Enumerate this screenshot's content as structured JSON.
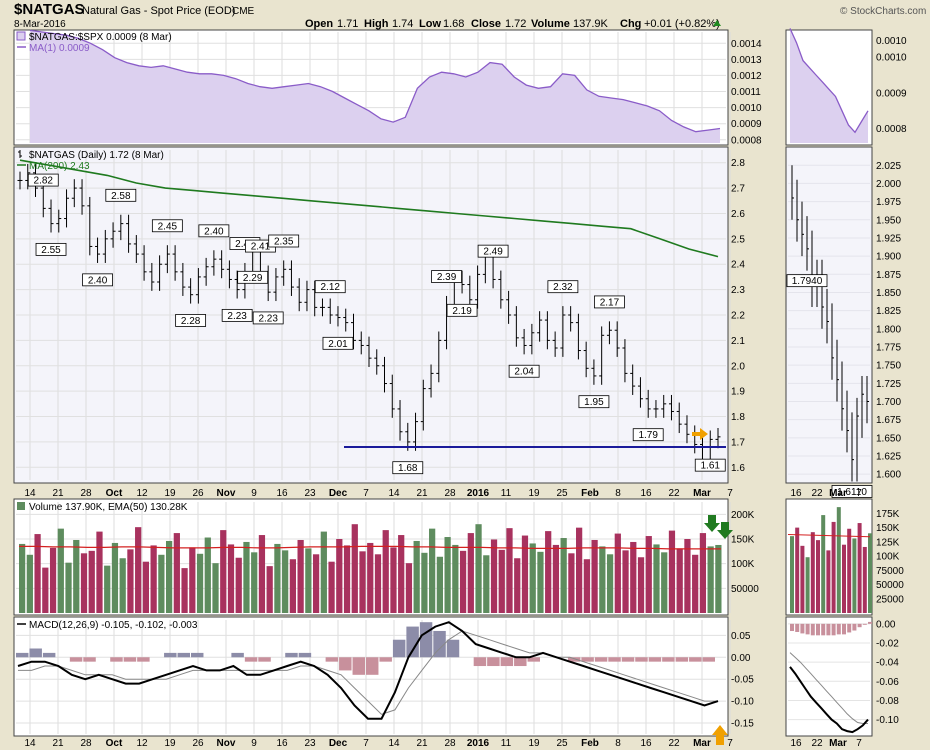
{
  "header": {
    "symbol": "$NATGAS",
    "name": "Natural Gas - Spot Price (EOD)",
    "exchange": "CME",
    "date": "8-Mar-2016",
    "copyright": "© StockCharts.com",
    "quote": {
      "open_label": "Open",
      "open": "1.71",
      "high_label": "High",
      "high": "1.74",
      "low_label": "Low",
      "low": "1.68",
      "close_label": "Close",
      "close": "1.72",
      "volume_label": "Volume",
      "volume": "137.9K",
      "chg_label": "Chg",
      "chg": "+0.01 (+0.82%)"
    }
  },
  "colors": {
    "ratio_line": "#8a5cc8",
    "ratio_fill": "#dcd0ef",
    "ma200": "#1f7a1f",
    "support": "#1a1a9a",
    "vol_up": "#5e8c5e",
    "vol_down": "#a8325e",
    "ema": "#d42020",
    "macd": "#000000",
    "signal": "#888888",
    "hist_pos": "#8c8ca8",
    "hist_neg": "#c8909c",
    "arrow_orange": "#f0a000",
    "arrow_green": "#207a20"
  },
  "x_axis": {
    "ticks": [
      "14",
      "21",
      "28",
      "Oct",
      "12",
      "19",
      "26",
      "Nov",
      "9",
      "16",
      "23",
      "Dec",
      "7",
      "14",
      "21",
      "28",
      "2016",
      "11",
      "19",
      "25",
      "Feb",
      "8",
      "16",
      "22",
      "Mar",
      "7"
    ],
    "right_ticks": [
      "16",
      "22",
      "Mar",
      "7"
    ]
  },
  "chart_data": [
    {
      "type": "area",
      "panel": "ratio",
      "label": "$NATGAS:$SPX 0.0009 (8 Mar)",
      "ma_label": "MA(1) 0.0009",
      "yticks": [
        "0.0014",
        "0.0013",
        "0.0012",
        "0.0011",
        "0.0010",
        "0.0009",
        "0.0008"
      ],
      "ylim": [
        0.00078,
        0.00147
      ],
      "series": [
        {
          "name": "$NATGAS:$SPX",
          "values": [
            0.00148,
            0.00147,
            0.00146,
            0.00145,
            0.00143,
            0.0014,
            0.00136,
            0.00131,
            0.00128,
            0.00126,
            0.00125,
            0.00126,
            0.00124,
            0.00122,
            0.00121,
            0.00121,
            0.0012,
            0.00118,
            0.00115,
            0.00113,
            0.00112,
            0.00113,
            0.00114,
            0.00115,
            0.00113,
            0.0011,
            0.00106,
            0.00102,
            0.00098,
            0.00093,
            0.00091,
            0.00094,
            0.00112,
            0.00119,
            0.00122,
            0.00121,
            0.00119,
            0.00122,
            0.00128,
            0.00127,
            0.00119,
            0.00114,
            0.00112,
            0.00113,
            0.00121,
            0.0012,
            0.00111,
            0.00107,
            0.00106,
            0.00105,
            0.00103,
            0.00101,
            0.00098,
            0.00092,
            0.00088,
            0.00085,
            0.00086,
            0.00087
          ]
        }
      ]
    },
    {
      "type": "ohlc",
      "panel": "price",
      "label": "$NATGAS (Daily) 1.72 (8 Mar)",
      "ma_label": "MA(200) 2.43",
      "yticks": [
        "2.8",
        "2.7",
        "2.6",
        "2.5",
        "2.4",
        "2.3",
        "2.2",
        "2.1",
        "2.0",
        "1.9",
        "1.8",
        "1.7",
        "1.6"
      ],
      "ylim": [
        1.55,
        2.85
      ],
      "support_level": 1.68,
      "ma200": [
        2.81,
        2.79,
        2.77,
        2.75,
        2.72,
        2.7,
        2.69,
        2.68,
        2.67,
        2.66,
        2.65,
        2.64,
        2.63,
        2.62,
        2.61,
        2.6,
        2.59,
        2.58,
        2.57,
        2.56,
        2.55,
        2.54,
        2.5,
        2.46,
        2.43
      ],
      "close": [
        2.73,
        2.76,
        2.7,
        2.62,
        2.56,
        2.58,
        2.66,
        2.7,
        2.63,
        2.47,
        2.44,
        2.5,
        2.53,
        2.56,
        2.48,
        2.44,
        2.37,
        2.33,
        2.4,
        2.44,
        2.37,
        2.31,
        2.28,
        2.35,
        2.39,
        2.42,
        2.38,
        2.34,
        2.3,
        2.37,
        2.45,
        2.36,
        2.29,
        2.35,
        2.38,
        2.31,
        2.25,
        2.3,
        2.23,
        2.23,
        2.2,
        2.19,
        2.17,
        2.1,
        2.08,
        2.03,
        2.0,
        1.93,
        1.83,
        1.74,
        1.7,
        1.78,
        1.91,
        1.97,
        2.1,
        2.24,
        2.34,
        2.32,
        2.26,
        2.36,
        2.43,
        2.34,
        2.26,
        2.2,
        2.11,
        2.08,
        2.13,
        2.18,
        2.1,
        2.07,
        2.2,
        2.17,
        2.06,
        1.99,
        1.96,
        2.12,
        2.14,
        2.07,
        1.97,
        1.92,
        1.87,
        1.83,
        1.83,
        1.85,
        1.82,
        1.77,
        1.73,
        1.69,
        1.63,
        1.71,
        1.72
      ],
      "labels": [
        {
          "text": "2.82",
          "i": 3
        },
        {
          "text": "2.55",
          "i": 4,
          "below": true
        },
        {
          "text": "2.40",
          "i": 10,
          "below": true
        },
        {
          "text": "2.58",
          "i": 13
        },
        {
          "text": "2.45",
          "i": 19
        },
        {
          "text": "2.28",
          "i": 22,
          "below": true
        },
        {
          "text": "2.40",
          "i": 25
        },
        {
          "text": "2.46",
          "i": 29
        },
        {
          "text": "2.23",
          "i": 28,
          "below": true
        },
        {
          "text": "2.29",
          "i": 30,
          "below": true
        },
        {
          "text": "2.41",
          "i": 31
        },
        {
          "text": "2.35",
          "i": 34
        },
        {
          "text": "2.23",
          "i": 32,
          "below": true
        },
        {
          "text": "2.12",
          "i": 40
        },
        {
          "text": "2.01",
          "i": 41,
          "below": true
        },
        {
          "text": "1.68",
          "i": 50,
          "below": true
        },
        {
          "text": "2.39",
          "i": 55
        },
        {
          "text": "2.19",
          "i": 57,
          "below": true
        },
        {
          "text": "2.49",
          "i": 61
        },
        {
          "text": "2.04",
          "i": 65,
          "below": true
        },
        {
          "text": "2.32",
          "i": 70
        },
        {
          "text": "1.95",
          "i": 74,
          "below": true
        },
        {
          "text": "2.17",
          "i": 76
        },
        {
          "text": "1.79",
          "i": 81,
          "below": true
        },
        {
          "text": "1.61",
          "i": 89,
          "below": true
        }
      ]
    },
    {
      "type": "ohlc",
      "panel": "price-intraday",
      "yticks": [
        "2.025",
        "2.000",
        "1.975",
        "1.950",
        "1.925",
        "1.900",
        "1.875",
        "1.850",
        "1.825",
        "1.800",
        "1.775",
        "1.750",
        "1.725",
        "1.700",
        "1.675",
        "1.650",
        "1.625",
        "1.600"
      ],
      "ylim": [
        1.592,
        2.046
      ],
      "close": [
        1.98,
        1.95,
        1.93,
        1.91,
        1.86,
        1.87,
        1.83,
        1.81,
        1.76,
        1.73,
        1.69,
        1.66,
        1.62,
        1.68,
        1.71,
        1.7
      ],
      "labels": [
        {
          "text": "1.7940",
          "i": 3,
          "below": true
        },
        {
          "text": "1.6110",
          "i": 12,
          "below": true
        }
      ]
    },
    {
      "type": "bar",
      "panel": "volume",
      "label": "Volume 137.90K, EMA(50) 130.28K",
      "yticks": [
        "200K",
        "150K",
        "100K",
        "50000"
      ],
      "ylim": [
        0,
        225000
      ],
      "values": [
        140000,
        118000,
        160000,
        92000,
        132000,
        171000,
        102000,
        148000,
        121000,
        126000,
        165000,
        96000,
        142000,
        111000,
        129000,
        174000,
        104000,
        137000,
        118000,
        146000,
        162000,
        91000,
        133000,
        120000,
        153000,
        101000,
        168000,
        139000,
        112000,
        144000,
        123000,
        158000,
        95000,
        140000,
        127000,
        109000,
        148000,
        131000,
        119000,
        165000,
        104000,
        150000,
        137000,
        180000,
        125000,
        142000,
        119000,
        168000,
        133000,
        158000,
        101000,
        146000,
        122000,
        171000,
        114000,
        154000,
        138000,
        126000,
        162000,
        180000,
        117000,
        149000,
        128000,
        172000,
        111000,
        157000,
        141000,
        124000,
        166000,
        138000,
        152000,
        121000,
        173000,
        109000,
        148000,
        135000,
        119000,
        161000,
        127000,
        144000,
        113000,
        156000,
        139000,
        123000,
        167000,
        131000,
        150000,
        118000,
        162000,
        135000,
        137900
      ],
      "ema": [
        135000,
        135000,
        134000,
        134000,
        133000,
        133000,
        134000,
        134000,
        133000,
        132000,
        132000,
        132000,
        133000,
        133000,
        132000,
        132000,
        133000,
        134000,
        134000,
        134000,
        135000,
        135000,
        135000,
        134000,
        134000,
        133000,
        133000,
        133000,
        132000,
        132000,
        131000,
        131000,
        131000,
        132000,
        132000,
        132000,
        131000,
        131000,
        130000,
        130000,
        130000,
        130000
      ]
    },
    {
      "type": "line",
      "panel": "macd",
      "label": "MACD(12,26,9) -0.105, -0.102, -0.003",
      "yticks": [
        "0.05",
        "0.00",
        "-0.05",
        "-0.10",
        "-0.15"
      ],
      "ylim": [
        -0.175,
        0.085
      ],
      "series": [
        {
          "name": "MACD",
          "values": [
            -0.02,
            -0.01,
            -0.01,
            -0.02,
            -0.04,
            -0.05,
            -0.04,
            -0.05,
            -0.06,
            -0.06,
            -0.05,
            -0.04,
            -0.03,
            -0.02,
            -0.03,
            -0.03,
            -0.02,
            -0.04,
            -0.04,
            -0.03,
            -0.02,
            -0.01,
            -0.02,
            -0.04,
            -0.07,
            -0.11,
            -0.14,
            -0.14,
            -0.08,
            0.0,
            0.05,
            0.07,
            0.08,
            0.06,
            0.03,
            0.02,
            0.01,
            0.0,
            0.0,
            0.01,
            0.0,
            -0.01,
            -0.02,
            -0.03,
            -0.04,
            -0.05,
            -0.06,
            -0.07,
            -0.08,
            -0.09,
            -0.1,
            -0.11,
            -0.1
          ]
        },
        {
          "name": "Signal",
          "values": [
            -0.03,
            -0.03,
            -0.02,
            -0.02,
            -0.03,
            -0.04,
            -0.04,
            -0.04,
            -0.05,
            -0.05,
            -0.05,
            -0.05,
            -0.04,
            -0.03,
            -0.03,
            -0.03,
            -0.03,
            -0.03,
            -0.03,
            -0.03,
            -0.03,
            -0.02,
            -0.02,
            -0.03,
            -0.04,
            -0.07,
            -0.1,
            -0.13,
            -0.12,
            -0.07,
            -0.03,
            0.01,
            0.04,
            0.06,
            0.05,
            0.04,
            0.03,
            0.02,
            0.01,
            0.01,
            0.0,
            0.0,
            -0.01,
            -0.02,
            -0.03,
            -0.04,
            -0.05,
            -0.06,
            -0.07,
            -0.08,
            -0.09,
            -0.1,
            -0.1
          ]
        }
      ]
    },
    {
      "type": "line",
      "panel": "macd-intraday",
      "yticks": [
        "0.00",
        "-0.02",
        "-0.04",
        "-0.06",
        "-0.08",
        "-0.10"
      ],
      "ylim": [
        -0.115,
        0.004
      ],
      "series": [
        {
          "name": "MACD",
          "values": [
            -0.045,
            -0.052,
            -0.06,
            -0.068,
            -0.076,
            -0.082,
            -0.088,
            -0.094,
            -0.1,
            -0.104,
            -0.11,
            -0.112,
            -0.113,
            -0.11,
            -0.106,
            -0.1
          ]
        },
        {
          "name": "Signal",
          "values": [
            -0.03,
            -0.035,
            -0.04,
            -0.046,
            -0.052,
            -0.058,
            -0.064,
            -0.07,
            -0.076,
            -0.082,
            -0.088,
            -0.094,
            -0.099,
            -0.103,
            -0.104,
            -0.104
          ]
        }
      ]
    }
  ]
}
